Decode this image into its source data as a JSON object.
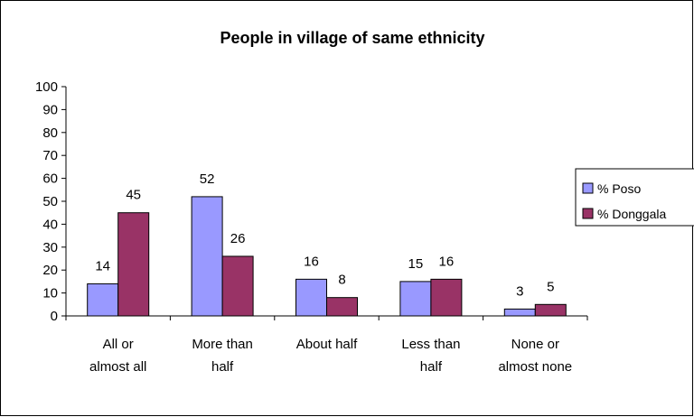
{
  "chart_data": {
    "type": "bar",
    "title": "People in village of same ethnicity",
    "categories": [
      [
        "All or",
        "almost all"
      ],
      [
        "More than",
        "half"
      ],
      [
        "About half"
      ],
      [
        "Less than",
        "half"
      ],
      [
        "None or",
        "almost none"
      ]
    ],
    "series": [
      {
        "name": "% Poso",
        "values": [
          14,
          52,
          16,
          15,
          3
        ],
        "color": "#9999ff"
      },
      {
        "name": "% Donggala",
        "values": [
          45,
          26,
          8,
          16,
          5
        ],
        "color": "#993366"
      }
    ],
    "ylim": [
      0,
      100
    ],
    "yticks": [
      0,
      10,
      20,
      30,
      40,
      50,
      60,
      70,
      80,
      90,
      100
    ],
    "xlabel": "",
    "ylabel": "",
    "grid": false,
    "legend_position": "right"
  }
}
